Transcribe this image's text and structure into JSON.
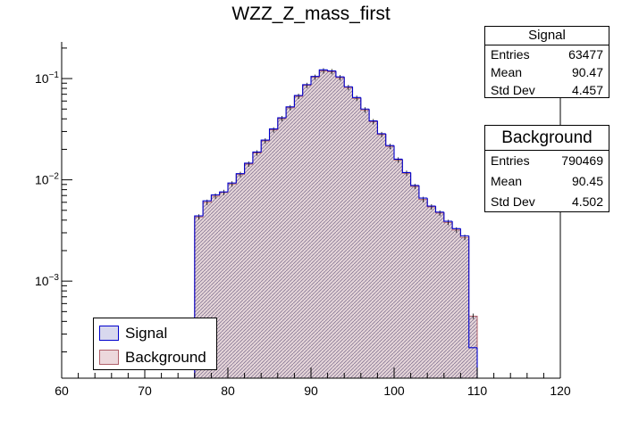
{
  "chart_data": {
    "type": "histogram",
    "title": "WZZ_Z_mass_first",
    "xlabel": "",
    "ylabel": "",
    "xlim": [
      60,
      120
    ],
    "ylim_log": [
      0.00011,
      0.23
    ],
    "yscale": "log",
    "x_ticks": [
      "60",
      "70",
      "80",
      "90",
      "100",
      "110",
      "120"
    ],
    "y_tick_labels": [
      {
        "value": 0.1,
        "base": "10",
        "exp": "−1"
      },
      {
        "value": 0.01,
        "base": "10",
        "exp": "−2"
      },
      {
        "value": 0.001,
        "base": "10",
        "exp": "−3"
      }
    ],
    "bin_width": 1,
    "bin_edges_start": 76,
    "series": [
      {
        "name": "Signal",
        "color": "#0000cc",
        "values": [
          0.0044,
          0.0062,
          0.0071,
          0.0076,
          0.0093,
          0.0115,
          0.0146,
          0.0188,
          0.0247,
          0.0318,
          0.041,
          0.0525,
          0.068,
          0.087,
          0.105,
          0.122,
          0.119,
          0.104,
          0.083,
          0.065,
          0.05,
          0.0382,
          0.0285,
          0.0218,
          0.016,
          0.0118,
          0.0088,
          0.0066,
          0.0055,
          0.0048,
          0.0039,
          0.0033,
          0.0028,
          0.00022
        ]
      },
      {
        "name": "Background",
        "color": "#b0606a",
        "values": [
          0.0043,
          0.006,
          0.0069,
          0.0075,
          0.0091,
          0.0113,
          0.0143,
          0.0184,
          0.0242,
          0.0311,
          0.0402,
          0.0515,
          0.0668,
          0.0855,
          0.103,
          0.119,
          0.117,
          0.102,
          0.0815,
          0.0638,
          0.049,
          0.0375,
          0.028,
          0.0214,
          0.0157,
          0.0116,
          0.0086,
          0.0064,
          0.0054,
          0.0047,
          0.0038,
          0.0032,
          0.0027,
          0.00045
        ]
      }
    ]
  },
  "stats": {
    "signal": {
      "title": "Signal",
      "entries_label": "Entries",
      "entries": "63477",
      "mean_label": "Mean",
      "mean": "90.47",
      "std_label": "Std Dev",
      "std": "4.457"
    },
    "background": {
      "title": "Background",
      "entries_label": "Entries",
      "entries": "790469",
      "mean_label": "Mean",
      "mean": "90.45",
      "std_label": "Std Dev",
      "std": "4.502"
    }
  },
  "legend": {
    "signal": "Signal",
    "background": "Background"
  }
}
